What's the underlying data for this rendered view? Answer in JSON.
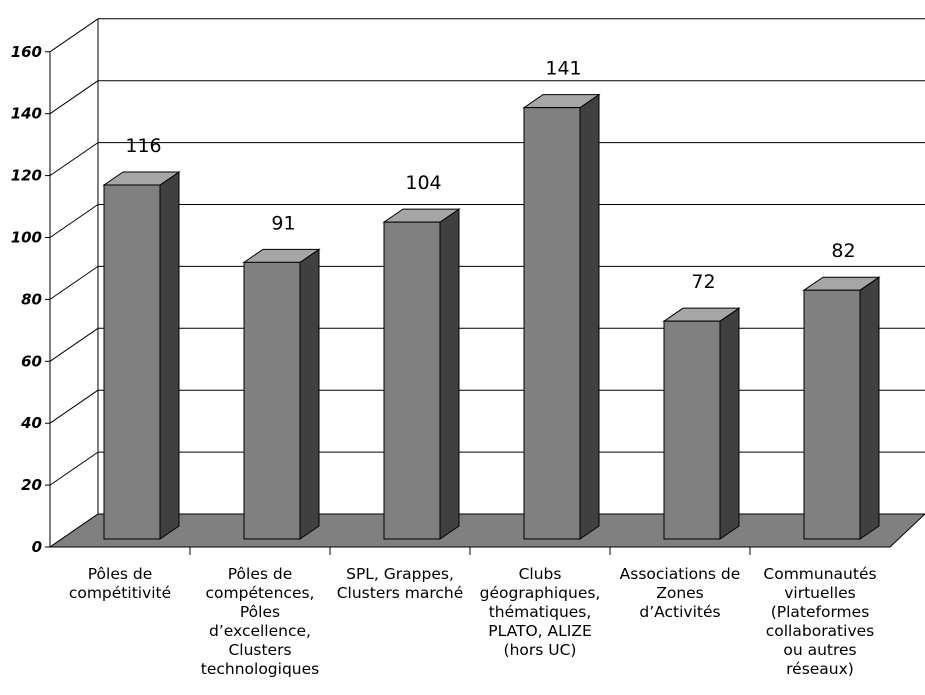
{
  "chart_data": {
    "type": "bar",
    "categories": [
      "Pôles de\ncompétitivité",
      "Pôles de\ncompétences,\nPôles\nd’excellence,\nClusters\ntechnologiques",
      "SPL, Grappes,\nClusters marché",
      "Clubs\ngéographiques,\nthématiques,\nPLATO, ALIZE\n(hors UC)",
      "Associations de\nZones\nd’Activités",
      "Communautés\nvirtuelles\n(Plateformes\ncollaboratives\nou autres\nréseaux)"
    ],
    "values": [
      116,
      91,
      104,
      141,
      72,
      82
    ],
    "data_labels": [
      "116",
      "91",
      "104",
      "141",
      "72",
      "82"
    ],
    "yticks": [
      "0",
      "20",
      "40",
      "60",
      "80",
      "100",
      "120",
      "140",
      "160"
    ],
    "ylim": [
      0,
      160
    ],
    "grid": true,
    "colors": {
      "bar_front": "#808080",
      "bar_side": "#404040",
      "bar_top": "#a6a6a6",
      "floor": "#808080",
      "grid": "#000000"
    }
  }
}
